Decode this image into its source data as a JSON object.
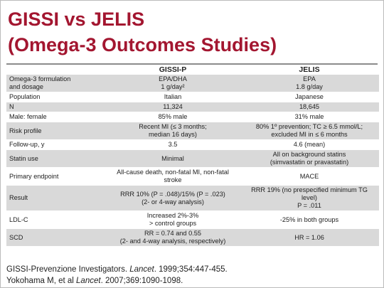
{
  "title": [
    "GISSI vs JELIS",
    "(Omega-3 Outcomes Studies)"
  ],
  "table": {
    "header": [
      "GISSI-P",
      "JELIS"
    ],
    "rows": [
      [
        "Omega-3 formulation\nand dosage",
        "EPA/DHA\n1 g/day²",
        "EPA\n1.8 g/day"
      ],
      [
        "Population",
        "Italian",
        "Japanese"
      ],
      [
        "N",
        "11,324",
        "18,645"
      ],
      [
        "Male: female",
        "85% male",
        "31% male"
      ],
      [
        "Risk profile",
        "Recent MI (≤ 3 months;\nmedian 16 days)",
        "80% 1º prevention; TC ≥ 6.5 mmol/L;\nexcluded MI in ≤ 6 months"
      ],
      [
        "Follow-up, y",
        "3.5",
        "4.6 (mean)"
      ],
      [
        "Statin use",
        "Minimal",
        "All on background statins\n(simvastatin or pravastatin)"
      ],
      [
        "Primary endpoint",
        "All-cause death, non-fatal MI, non-fatal stroke",
        "MACE"
      ],
      [
        "Result",
        "RRR 10% (P = .048)/15% (P = .023)\n(2- or 4-way analysis)",
        "RRR 19% (no prespecified minimum TG level)\nP = .011"
      ],
      [
        "LDL-C",
        "Increased 2%-3%\n> control groups",
        "-25% in both groups"
      ],
      [
        "SCD",
        "RR = 0.74 and 0.55\n(2- and 4-way analysis, respectively)",
        "HR = 1.06"
      ]
    ]
  },
  "citations": [
    [
      "GISSI-Prevenzione Investigators. ",
      "Lancet",
      ". 1999;354:447-455."
    ],
    [
      "Yokohama M, et al ",
      "Lancet",
      ". 2007;369:1090-1098."
    ]
  ]
}
